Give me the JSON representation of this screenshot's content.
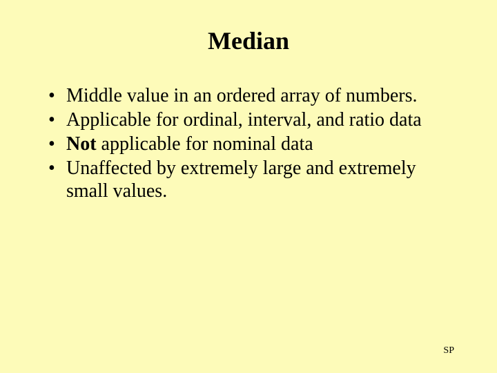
{
  "background_color": "#fdfbb9",
  "title": {
    "text": "Median",
    "fontsize": 36,
    "color": "#000000",
    "align": "center"
  },
  "bullets": {
    "fontsize": 28,
    "color": "#000000",
    "items": [
      {
        "text": "Middle value in an ordered array of numbers."
      },
      {
        "text": "Applicable for ordinal, interval, and ratio data"
      },
      {
        "bold_prefix": "Not",
        "rest": " applicable for nominal data"
      },
      {
        "text": "Unaffected by extremely large and extremely small values."
      }
    ]
  },
  "footer": {
    "text": "SP",
    "fontsize": 14,
    "color": "#000000"
  }
}
